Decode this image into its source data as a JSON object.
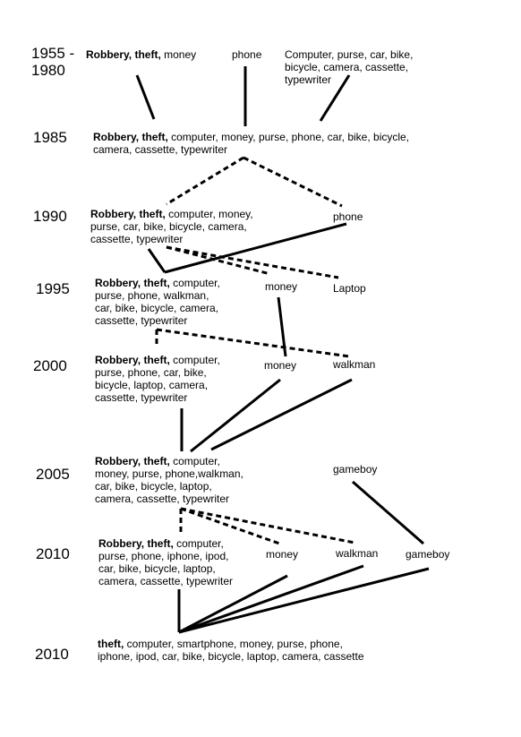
{
  "years": {
    "y1955": "1955 -\n1980",
    "y1985": "1985",
    "y1990": "1990",
    "y1995": "1995",
    "y2000": "2000",
    "y2005": "2005",
    "y2010a": "2010",
    "y2010b": "2010"
  },
  "nodes": {
    "n1955_main": {
      "bold": "Robbery, theft,",
      "text": " money"
    },
    "n1955_phone": {
      "text": "phone"
    },
    "n1955_items": {
      "text": "Computer, purse, car, bike,\nbicycle, camera, cassette,\ntypewriter"
    },
    "n1985_main": {
      "bold": "Robbery, theft,",
      "text": " computer, money, purse, phone, car, bike, bicycle,\ncamera, cassette, typewriter"
    },
    "n1990_main": {
      "bold": "Robbery, theft,",
      "text": " computer, money,\npurse, car, bike, bicycle, camera,\ncassette, typewriter"
    },
    "n1990_phone": {
      "text": "phone"
    },
    "n1995_main": {
      "bold": "Robbery, theft,",
      "text": " computer,\npurse, phone, walkman,\ncar, bike, bicycle, camera,\ncassette, typewriter"
    },
    "n1995_money": {
      "text": "money"
    },
    "n1995_laptop": {
      "text": "Laptop"
    },
    "n2000_main": {
      "bold": "Robbery, theft,",
      "text": " computer,\npurse, phone, car, bike,\nbicycle, laptop, camera,\ncassette, typewriter"
    },
    "n2000_money": {
      "text": "money"
    },
    "n2000_walkman": {
      "text": "walkman"
    },
    "n2005_main": {
      "bold": "Robbery, theft,",
      "text": " computer,\nmoney, purse, phone,walkman,\ncar, bike, bicycle, laptop,\ncamera, cassette, typewriter"
    },
    "n2005_gameboy": {
      "text": "gameboy"
    },
    "n2010a_main": {
      "bold": "Robbery, theft,",
      "text": " computer,\npurse, phone, iphone, ipod,\ncar, bike, bicycle, laptop,\ncamera, cassette, typewriter"
    },
    "n2010a_money": {
      "text": "money"
    },
    "n2010a_walkman": {
      "text": "walkman"
    },
    "n2010a_gameboy": {
      "text": "gameboy"
    },
    "n2010b_main": {
      "bold": "theft,",
      "text": " computer, smartphone, money, purse, phone,\niphone, ipod, car, bike, bicycle, laptop, camera, cassette"
    }
  }
}
